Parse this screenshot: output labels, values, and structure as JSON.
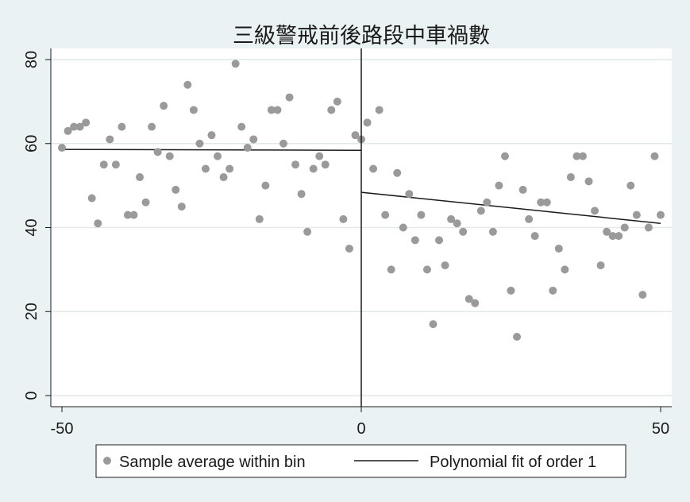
{
  "chart_data": {
    "type": "scatter",
    "title": "三級警戒前後路段中車禍數",
    "xlabel": "",
    "ylabel": "",
    "xlim": [
      -50,
      50
    ],
    "ylim": [
      0,
      80
    ],
    "x_ticks": [
      -50,
      0,
      50
    ],
    "y_ticks": [
      0,
      20,
      40,
      60,
      80
    ],
    "cutoff": 0,
    "grid": "horizontal",
    "legend_position": "bottom",
    "colors": {
      "points": "#9a9a9a",
      "fit": "#1a1a1a",
      "background": "#eaf2f3",
      "plot_background": "#ffffff",
      "grid": "#e1e9ea"
    },
    "series": [
      {
        "name": "Sample average within bin",
        "kind": "scatter",
        "x": [
          -50,
          -49,
          -48,
          -47,
          -46,
          -45,
          -44,
          -43,
          -42,
          -41,
          -40,
          -39,
          -38,
          -37,
          -36,
          -35,
          -34,
          -33,
          -32,
          -31,
          -30,
          -29,
          -28,
          -27,
          -26,
          -25,
          -24,
          -23,
          -22,
          -21,
          -20,
          -19,
          -18,
          -17,
          -16,
          -15,
          -14,
          -13,
          -12,
          -11,
          -10,
          -9,
          -8,
          -7,
          -6,
          -5,
          -4,
          -3,
          -2,
          -1,
          0,
          1,
          2,
          3,
          4,
          5,
          6,
          7,
          8,
          9,
          10,
          11,
          12,
          13,
          14,
          15,
          16,
          17,
          18,
          19,
          20,
          21,
          22,
          23,
          24,
          25,
          26,
          27,
          28,
          29,
          30,
          31,
          32,
          33,
          34,
          35,
          36,
          37,
          38,
          39,
          40,
          41,
          42,
          43,
          44,
          45,
          46,
          47,
          48,
          49,
          50
        ],
        "y": [
          59,
          63,
          64,
          64,
          65,
          47,
          41,
          55,
          61,
          55,
          64,
          43,
          43,
          52,
          46,
          64,
          58,
          69,
          57,
          49,
          45,
          74,
          68,
          60,
          54,
          62,
          57,
          52,
          54,
          79,
          64,
          59,
          61,
          42,
          50,
          68,
          68,
          60,
          71,
          55,
          48,
          39,
          54,
          57,
          55,
          68,
          70,
          42,
          35,
          62,
          61,
          65,
          54,
          68,
          43,
          30,
          53,
          40,
          48,
          37,
          43,
          30,
          17,
          37,
          31,
          42,
          41,
          39,
          23,
          22,
          44,
          46,
          39,
          50,
          57,
          25,
          14,
          49,
          42,
          38,
          46,
          46,
          25,
          35,
          30,
          52,
          57,
          57,
          51,
          44,
          31,
          39,
          38,
          38,
          40,
          50,
          43,
          24,
          40,
          57,
          43
        ]
      },
      {
        "name": "Polynomial fit of order 1",
        "kind": "line",
        "segments": [
          {
            "x": [
              -50,
              0
            ],
            "y": [
              58.6,
              58.4
            ]
          },
          {
            "x": [
              0,
              50
            ],
            "y": [
              48.4,
              41.0
            ]
          }
        ]
      }
    ]
  }
}
